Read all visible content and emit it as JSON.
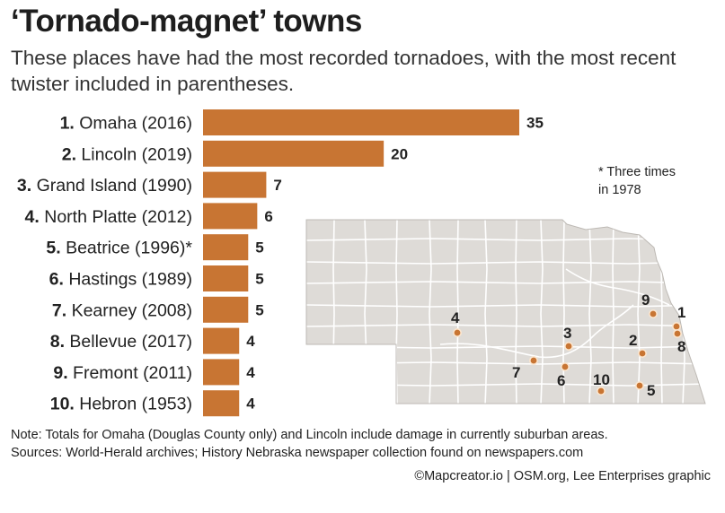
{
  "title": "‘Tornado-magnet’ towns",
  "subtitle": "These places have had the most recorded tornadoes, with the most recent twister included in parentheses.",
  "footnote": {
    "line1": "* Three times",
    "line2": "in 1978"
  },
  "note": "Note: Totals for Omaha (Douglas County only) and Lincoln include damage in currently suburban areas.",
  "sources": "Sources: World-Herald archives; History Nebraska newspaper collection found on newspapers.com",
  "credit": "©Mapcreator.io | OSM.org, Lee Enterprises graphic",
  "colors": {
    "bar": "#c87533",
    "map_fill": "#dedbd7",
    "map_stroke": "#ffffff",
    "marker": "#c87533"
  },
  "chart_data": {
    "type": "bar",
    "orientation": "horizontal",
    "categories": [
      {
        "rank": "1.",
        "name": "Omaha (2016)"
      },
      {
        "rank": "2.",
        "name": "Lincoln (2019)"
      },
      {
        "rank": "3.",
        "name": "Grand Island (1990)"
      },
      {
        "rank": "4.",
        "name": "North Platte (2012)"
      },
      {
        "rank": "5.",
        "name": "Beatrice (1996)*"
      },
      {
        "rank": "6.",
        "name": "Hastings (1989)"
      },
      {
        "rank": "7.",
        "name": "Kearney (2008)"
      },
      {
        "rank": "8.",
        "name": "Bellevue (2017)"
      },
      {
        "rank": "9.",
        "name": "Fremont (2011)"
      },
      {
        "rank": "10.",
        "name": "Hebron (1953)"
      }
    ],
    "values": [
      35,
      20,
      7,
      6,
      5,
      5,
      5,
      4,
      4,
      4
    ],
    "value_labels": [
      "35",
      "20",
      "7",
      "6",
      "5",
      "5",
      "5",
      "4",
      "4",
      "4"
    ],
    "xlim": [
      0,
      35
    ]
  },
  "map": {
    "markers": [
      "1",
      "2",
      "3",
      "4",
      "5",
      "6",
      "7",
      "8",
      "9",
      "10"
    ]
  }
}
